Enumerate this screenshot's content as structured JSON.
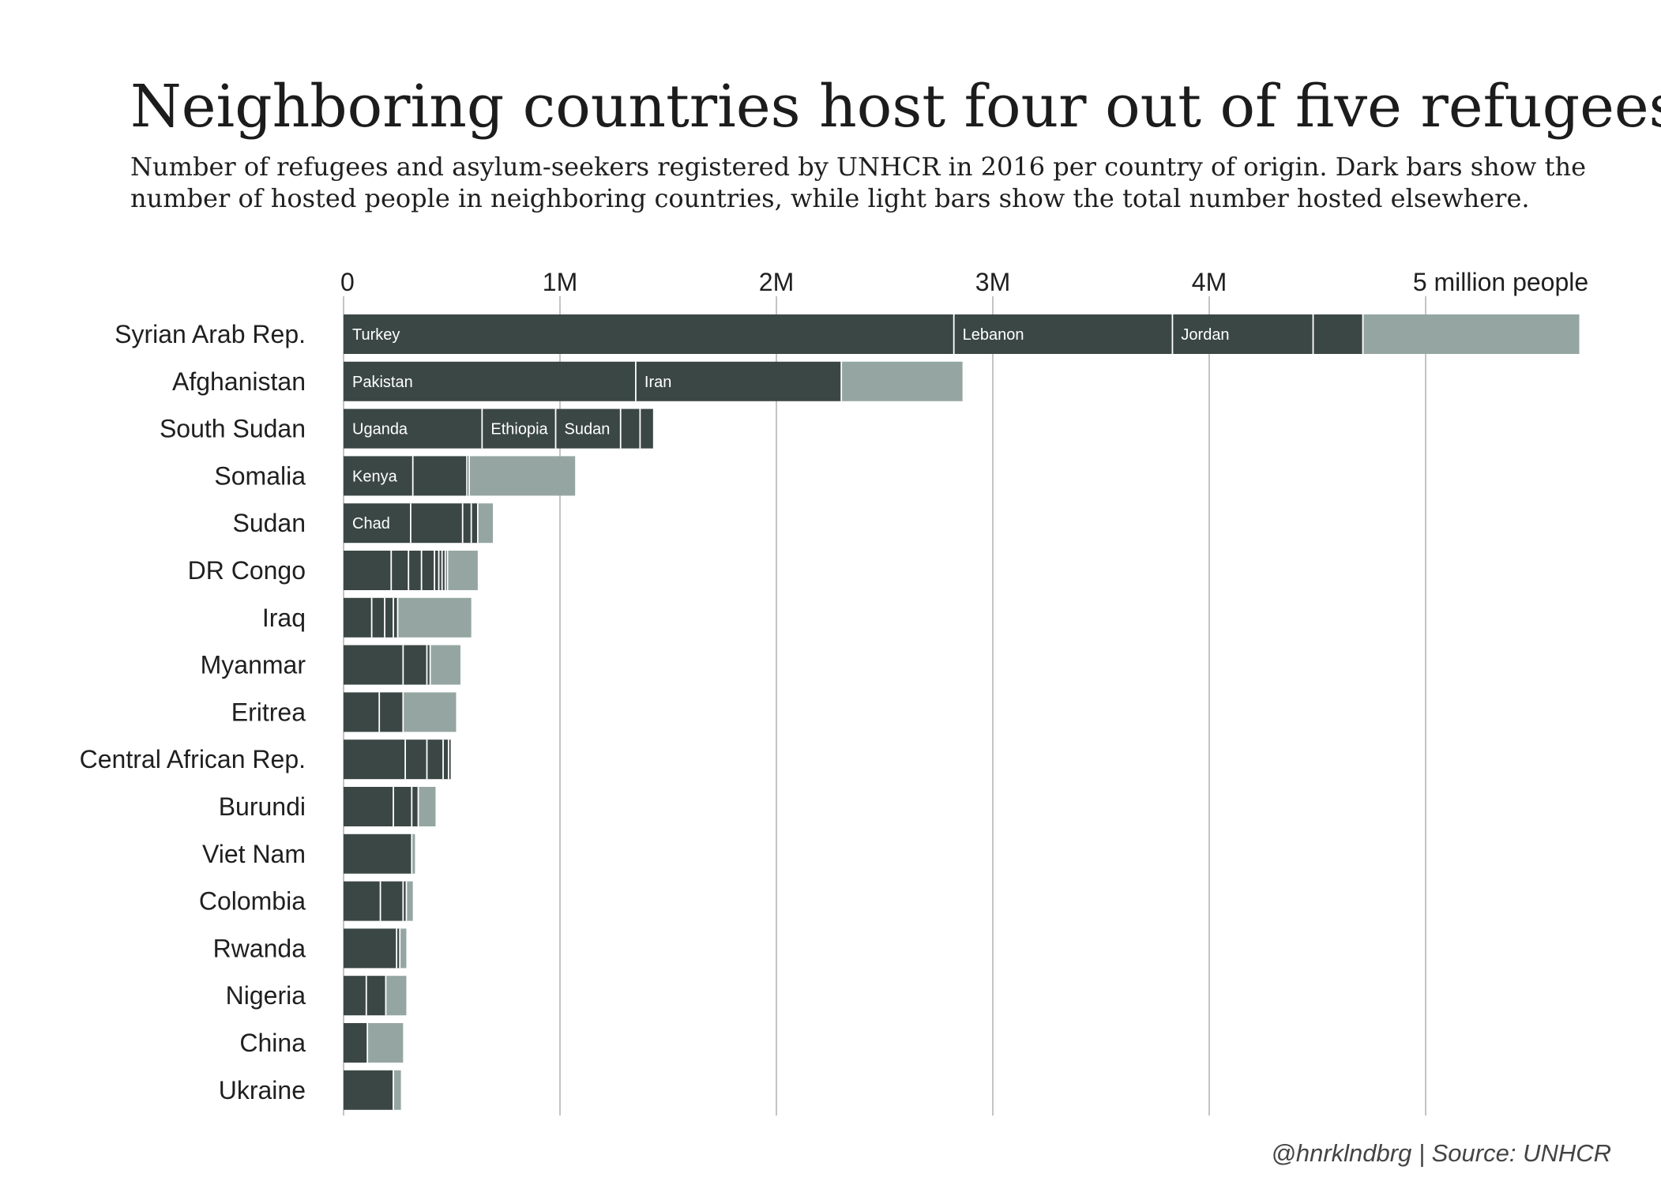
{
  "chart_data": {
    "type": "bar",
    "orientation": "horizontal",
    "stacked": true,
    "title": "Neighboring countries host four out of five refugees",
    "subtitle_lines": [
      "Number of refugees and asylum-seekers registered by UNHCR in 2016 per country of origin. Dark bars show the",
      "number of hosted people in neighboring countries, while light bars show the total number hosted elsewhere."
    ],
    "source": "@hnrklndbrg | Source: UNHCR",
    "xlim": [
      0,
      5700000
    ],
    "xticks": [
      {
        "value": 0,
        "label": "0"
      },
      {
        "value": 1000000,
        "label": "1M"
      },
      {
        "value": 2000000,
        "label": "2M"
      },
      {
        "value": 3000000,
        "label": "3M"
      },
      {
        "value": 4000000,
        "label": "4M"
      },
      {
        "value": 5000000,
        "label": "5 million people"
      }
    ],
    "grid": true,
    "colors": {
      "neighbor": "#3b4745",
      "elsewhere": "#95a6a2",
      "separator": "#ffffff"
    },
    "rows": [
      {
        "country": "Syrian Arab Rep.",
        "neighbors": [
          {
            "name": "Turkey",
            "value": 2820000
          },
          {
            "name": "Lebanon",
            "value": 1010000
          },
          {
            "name": "Jordan",
            "value": 650000
          },
          {
            "name": "",
            "value": 230000
          }
        ],
        "elsewhere": 1000000
      },
      {
        "country": "Afghanistan",
        "neighbors": [
          {
            "name": "Pakistan",
            "value": 1350000
          },
          {
            "name": "Iran",
            "value": 950000
          }
        ],
        "elsewhere": 560000
      },
      {
        "country": "South Sudan",
        "neighbors": [
          {
            "name": "Uganda",
            "value": 640000
          },
          {
            "name": "Ethiopia",
            "value": 340000
          },
          {
            "name": "Sudan",
            "value": 300000
          },
          {
            "name": "",
            "value": 90000
          },
          {
            "name": "",
            "value": 60000
          }
        ],
        "elsewhere": 0
      },
      {
        "country": "Somalia",
        "neighbors": [
          {
            "name": "Kenya",
            "value": 320000
          },
          {
            "name": "",
            "value": 250000
          },
          {
            "name": "",
            "value": 10000
          }
        ],
        "elsewhere": 490000
      },
      {
        "country": "Sudan",
        "neighbors": [
          {
            "name": "Chad",
            "value": 310000
          },
          {
            "name": "",
            "value": 240000
          },
          {
            "name": "",
            "value": 40000
          },
          {
            "name": "",
            "value": 30000
          }
        ],
        "elsewhere": 70000
      },
      {
        "country": "DR Congo",
        "neighbors": [
          {
            "name": "",
            "value": 220000
          },
          {
            "name": "",
            "value": 80000
          },
          {
            "name": "",
            "value": 60000
          },
          {
            "name": "",
            "value": 60000
          },
          {
            "name": "",
            "value": 20000
          },
          {
            "name": "",
            "value": 15000
          },
          {
            "name": "",
            "value": 15000
          },
          {
            "name": "",
            "value": 10000
          }
        ],
        "elsewhere": 140000
      },
      {
        "country": "Iraq",
        "neighbors": [
          {
            "name": "",
            "value": 130000
          },
          {
            "name": "",
            "value": 60000
          },
          {
            "name": "",
            "value": 40000
          },
          {
            "name": "",
            "value": 20000
          }
        ],
        "elsewhere": 340000
      },
      {
        "country": "Myanmar",
        "neighbors": [
          {
            "name": "",
            "value": 275000
          },
          {
            "name": "",
            "value": 110000
          },
          {
            "name": "",
            "value": 15000
          }
        ],
        "elsewhere": 140000
      },
      {
        "country": "Eritrea",
        "neighbors": [
          {
            "name": "",
            "value": 165000
          },
          {
            "name": "",
            "value": 110000
          }
        ],
        "elsewhere": 245000
      },
      {
        "country": "Central African Rep.",
        "neighbors": [
          {
            "name": "",
            "value": 285000
          },
          {
            "name": "",
            "value": 100000
          },
          {
            "name": "",
            "value": 75000
          },
          {
            "name": "",
            "value": 25000
          },
          {
            "name": "",
            "value": 10000
          }
        ],
        "elsewhere": 0
      },
      {
        "country": "Burundi",
        "neighbors": [
          {
            "name": "",
            "value": 230000
          },
          {
            "name": "",
            "value": 85000
          },
          {
            "name": "",
            "value": 30000
          }
        ],
        "elsewhere": 80000
      },
      {
        "country": "Viet Nam",
        "neighbors": [
          {
            "name": "",
            "value": 315000
          }
        ],
        "elsewhere": 15000
      },
      {
        "country": "Colombia",
        "neighbors": [
          {
            "name": "",
            "value": 170000
          },
          {
            "name": "",
            "value": 105000
          },
          {
            "name": "",
            "value": 15000
          }
        ],
        "elsewhere": 30000
      },
      {
        "country": "Rwanda",
        "neighbors": [
          {
            "name": "",
            "value": 245000
          },
          {
            "name": "",
            "value": 15000
          }
        ],
        "elsewhere": 30000
      },
      {
        "country": "Nigeria",
        "neighbors": [
          {
            "name": "",
            "value": 105000
          },
          {
            "name": "",
            "value": 90000
          }
        ],
        "elsewhere": 95000
      },
      {
        "country": "China",
        "neighbors": [
          {
            "name": "",
            "value": 110000
          }
        ],
        "elsewhere": 165000
      },
      {
        "country": "Ukraine",
        "neighbors": [
          {
            "name": "",
            "value": 230000
          }
        ],
        "elsewhere": 35000
      }
    ]
  }
}
